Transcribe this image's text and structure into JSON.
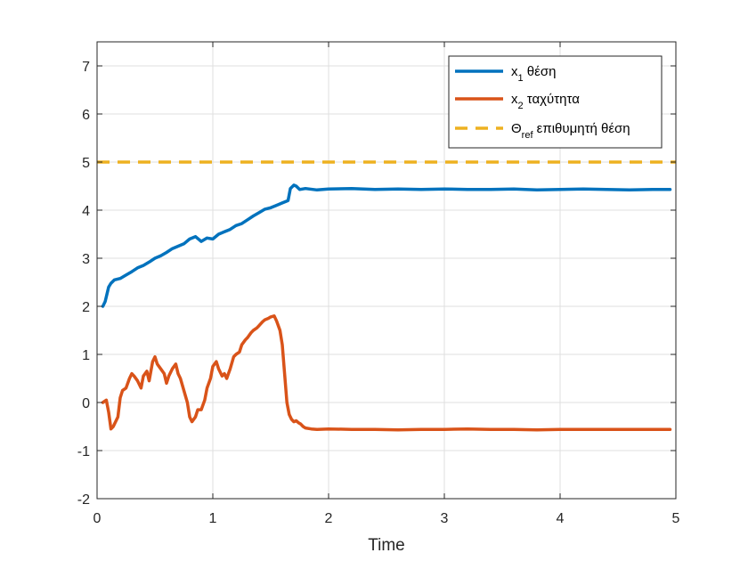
{
  "chart_data": {
    "type": "line",
    "title": "",
    "xlabel": "Time",
    "ylabel": "",
    "xlim": [
      0,
      5
    ],
    "ylim": [
      -2,
      7.5
    ],
    "xticks": [
      "0",
      "1",
      "2",
      "3",
      "4",
      "5"
    ],
    "yticks": [
      "-2",
      "-1",
      "0",
      "1",
      "2",
      "3",
      "4",
      "5",
      "6",
      "7"
    ],
    "grid": true,
    "legend_position": "top-right",
    "series": [
      {
        "name": "x1 θέση",
        "legend_main": "x",
        "legend_sub": "1",
        "legend_rest": " θέση",
        "color": "#0072BD",
        "style": "solid",
        "x": [
          0.05,
          0.07,
          0.09,
          0.1,
          0.12,
          0.15,
          0.2,
          0.25,
          0.3,
          0.35,
          0.4,
          0.45,
          0.5,
          0.55,
          0.6,
          0.65,
          0.7,
          0.75,
          0.8,
          0.85,
          0.9,
          0.95,
          1.0,
          1.05,
          1.1,
          1.15,
          1.2,
          1.25,
          1.3,
          1.35,
          1.4,
          1.45,
          1.5,
          1.55,
          1.6,
          1.65,
          1.67,
          1.7,
          1.72,
          1.75,
          1.8,
          1.9,
          2.0,
          2.2,
          2.4,
          2.6,
          2.8,
          3.0,
          3.2,
          3.4,
          3.6,
          3.8,
          4.0,
          4.2,
          4.4,
          4.6,
          4.8,
          4.95
        ],
        "y": [
          2.0,
          2.1,
          2.3,
          2.4,
          2.48,
          2.55,
          2.58,
          2.65,
          2.72,
          2.8,
          2.85,
          2.92,
          3.0,
          3.05,
          3.12,
          3.2,
          3.25,
          3.3,
          3.4,
          3.45,
          3.35,
          3.42,
          3.4,
          3.5,
          3.55,
          3.6,
          3.68,
          3.72,
          3.8,
          3.88,
          3.95,
          4.02,
          4.05,
          4.1,
          4.15,
          4.2,
          4.45,
          4.52,
          4.5,
          4.43,
          4.45,
          4.42,
          4.44,
          4.45,
          4.43,
          4.44,
          4.43,
          4.44,
          4.43,
          4.43,
          4.44,
          4.42,
          4.43,
          4.44,
          4.43,
          4.42,
          4.43,
          4.43
        ]
      },
      {
        "name": "x2 ταχύτητα",
        "legend_main": "x",
        "legend_sub": "2",
        "legend_rest": " ταχύτητα",
        "color": "#D95319",
        "style": "solid",
        "x": [
          0.05,
          0.08,
          0.1,
          0.12,
          0.14,
          0.16,
          0.18,
          0.2,
          0.22,
          0.25,
          0.28,
          0.3,
          0.32,
          0.35,
          0.38,
          0.4,
          0.43,
          0.45,
          0.48,
          0.5,
          0.52,
          0.55,
          0.58,
          0.6,
          0.62,
          0.65,
          0.68,
          0.7,
          0.72,
          0.75,
          0.78,
          0.8,
          0.82,
          0.85,
          0.87,
          0.9,
          0.93,
          0.95,
          0.98,
          1.0,
          1.03,
          1.05,
          1.08,
          1.1,
          1.12,
          1.15,
          1.18,
          1.2,
          1.23,
          1.25,
          1.28,
          1.3,
          1.33,
          1.35,
          1.38,
          1.4,
          1.43,
          1.45,
          1.48,
          1.5,
          1.53,
          1.55,
          1.58,
          1.6,
          1.62,
          1.64,
          1.66,
          1.68,
          1.7,
          1.72,
          1.74,
          1.76,
          1.78,
          1.8,
          1.85,
          1.9,
          2.0,
          2.2,
          2.4,
          2.6,
          2.8,
          3.0,
          3.2,
          3.4,
          3.6,
          3.8,
          4.0,
          4.2,
          4.4,
          4.6,
          4.8,
          4.95
        ],
        "y": [
          0.0,
          0.05,
          -0.2,
          -0.55,
          -0.5,
          -0.4,
          -0.3,
          0.1,
          0.25,
          0.3,
          0.5,
          0.6,
          0.55,
          0.45,
          0.3,
          0.55,
          0.65,
          0.45,
          0.85,
          0.95,
          0.8,
          0.7,
          0.6,
          0.4,
          0.55,
          0.7,
          0.8,
          0.6,
          0.5,
          0.25,
          0.0,
          -0.3,
          -0.4,
          -0.3,
          -0.15,
          -0.15,
          0.05,
          0.3,
          0.5,
          0.75,
          0.85,
          0.7,
          0.55,
          0.6,
          0.5,
          0.7,
          0.95,
          1.0,
          1.05,
          1.2,
          1.3,
          1.35,
          1.45,
          1.5,
          1.55,
          1.6,
          1.68,
          1.72,
          1.75,
          1.78,
          1.8,
          1.7,
          1.5,
          1.2,
          0.6,
          0.0,
          -0.25,
          -0.35,
          -0.4,
          -0.38,
          -0.42,
          -0.45,
          -0.5,
          -0.53,
          -0.55,
          -0.56,
          -0.55,
          -0.56,
          -0.56,
          -0.57,
          -0.56,
          -0.56,
          -0.55,
          -0.56,
          -0.56,
          -0.57,
          -0.56,
          -0.56,
          -0.56,
          -0.56,
          -0.56,
          -0.56
        ]
      },
      {
        "name": "Θref επιθυμητή θέση",
        "legend_main": "Θ",
        "legend_sub": "ref",
        "legend_rest": " επιθυμητή θέση",
        "color": "#EDB120",
        "style": "dashed",
        "x": [
          0.0,
          5.0
        ],
        "y": [
          5.0,
          5.0
        ]
      }
    ]
  }
}
